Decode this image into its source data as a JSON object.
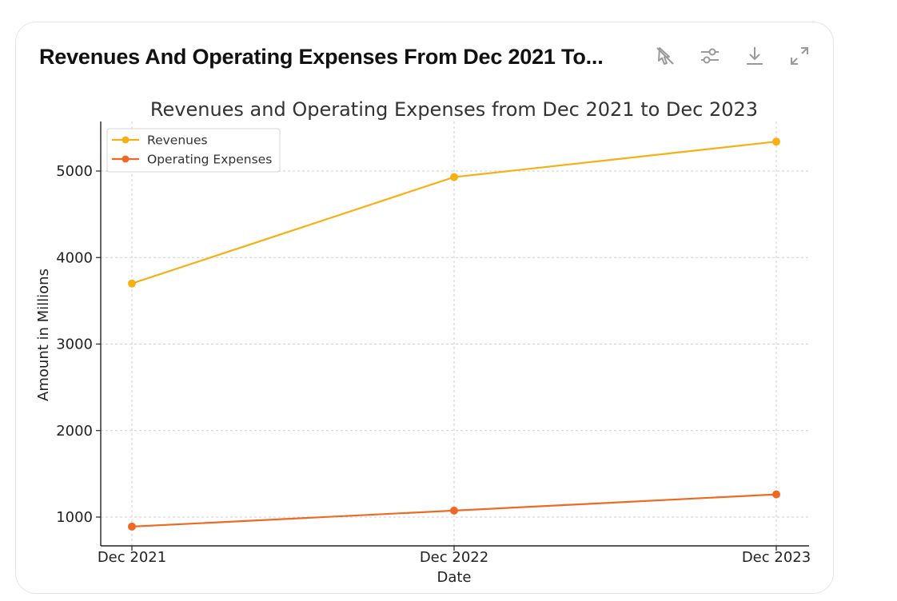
{
  "card": {
    "title": "Revenues And Operating Expenses From Dec 2021 To..."
  },
  "toolbar": {
    "icons": [
      "interactive-off-icon",
      "settings-sliders-icon",
      "download-icon",
      "expand-icon"
    ]
  },
  "chart_data": {
    "type": "line",
    "title": "Revenues and Operating Expenses from Dec 2021 to Dec 2023",
    "xlabel": "Date",
    "ylabel": "Amount in Millions",
    "categories": [
      "Dec 2021",
      "Dec 2022",
      "Dec 2023"
    ],
    "yticks": [
      1000,
      2000,
      3000,
      4000,
      5000
    ],
    "ylim": [
      680,
      5560
    ],
    "grid": true,
    "legend_position": "top-left",
    "series": [
      {
        "name": "Revenues",
        "values": [
          3700,
          4930,
          5340
        ],
        "color": "#f5b114"
      },
      {
        "name": "Operating Expenses",
        "values": [
          890,
          1075,
          1262
        ],
        "color": "#ee6a24"
      }
    ]
  }
}
